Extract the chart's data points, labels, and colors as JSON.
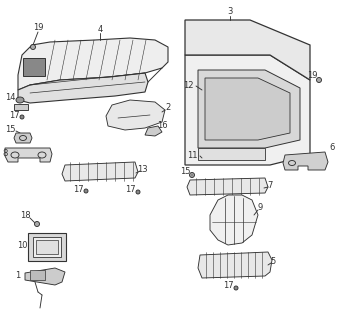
{
  "background_color": "#ffffff",
  "line_color": "#333333",
  "label_color": "#333333",
  "font_size": 6.0,
  "lw": 0.65
}
